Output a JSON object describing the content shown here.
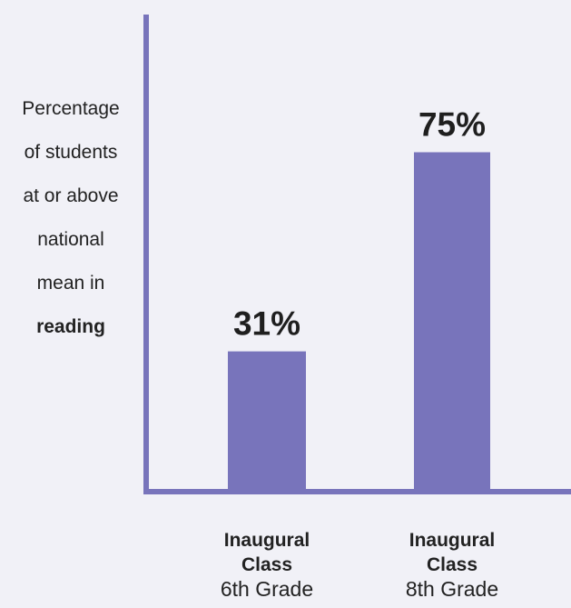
{
  "chart_data": {
    "type": "bar",
    "ylabel": {
      "lines": [
        "Percentage",
        "of students",
        "at or above",
        "national",
        "mean in"
      ],
      "emphasis": "reading"
    },
    "categories": [
      {
        "line1": "Inaugural",
        "line2": "Class",
        "line3": "6th Grade"
      },
      {
        "line1": "Inaugural",
        "line2": "Class",
        "line3": "8th Grade"
      }
    ],
    "values": [
      31,
      75
    ],
    "value_labels": [
      "31%",
      "75%"
    ],
    "ylim": [
      0,
      100
    ],
    "grid": false,
    "colors": {
      "bar": "#7874bb",
      "axis": "#7874bb",
      "background": "#f1f1f7"
    }
  }
}
